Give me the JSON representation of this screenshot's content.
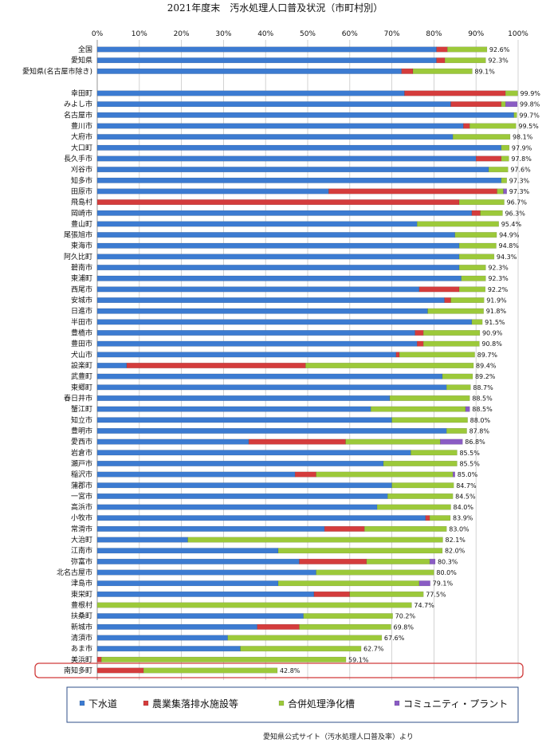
{
  "colors": {
    "sewer": "#3c7bd1",
    "agri": "#d43c3c",
    "johkasou": "#9cc93a",
    "community": "#8a5cc4",
    "highlight_box": "#d03a3a"
  },
  "chart_data": {
    "type": "bar",
    "orientation": "horizontal",
    "stacked": true,
    "title": "2021年度末　汚水処理人口普及状況（市町村別）",
    "source": "愛知県公式サイト（汚水処理人口普及率）より",
    "xlim": [
      0,
      100
    ],
    "x_ticks": [
      "0%",
      "10%",
      "20%",
      "30%",
      "40%",
      "50%",
      "60%",
      "70%",
      "80%",
      "90%",
      "100%"
    ],
    "grid": true,
    "legend_position": "bottom",
    "highlighted_category": "南知多町",
    "series": [
      {
        "key": "sewer",
        "name": "下水道"
      },
      {
        "key": "agri",
        "name": "農業集落排水施設等"
      },
      {
        "key": "johkasou",
        "name": "合併処理浄化槽"
      },
      {
        "key": "community",
        "name": "コミュニティ・プラント"
      }
    ],
    "categories": [
      {
        "name": "全国",
        "sewer": 80.6,
        "agri": 2.6,
        "johkasou": 9.4,
        "community": 0,
        "total": "92.6%"
      },
      {
        "name": "愛知県",
        "sewer": 80.6,
        "agri": 2.0,
        "johkasou": 9.7,
        "community": 0,
        "total": "92.3%"
      },
      {
        "name": "愛知県(名古屋市除き)",
        "sewer": 72.3,
        "agri": 2.7,
        "johkasou": 14.1,
        "community": 0,
        "total": "89.1%"
      },
      {
        "name": "幸田町",
        "sewer": 73.0,
        "agri": 24.0,
        "johkasou": 2.9,
        "community": 0,
        "total": "99.9%"
      },
      {
        "name": "みよし市",
        "sewer": 84.0,
        "agri": 12.0,
        "johkasou": 1.0,
        "community": 2.8,
        "total": "99.8%"
      },
      {
        "name": "名古屋市",
        "sewer": 99.0,
        "agri": 0,
        "johkasou": 0.7,
        "community": 0,
        "total": "99.7%"
      },
      {
        "name": "豊川市",
        "sewer": 87.0,
        "agri": 1.5,
        "johkasou": 11.0,
        "community": 0,
        "total": "99.5%"
      },
      {
        "name": "大府市",
        "sewer": 84.5,
        "agri": 0,
        "johkasou": 13.6,
        "community": 0,
        "total": "98.1%"
      },
      {
        "name": "大口町",
        "sewer": 96.0,
        "agri": 0,
        "johkasou": 1.9,
        "community": 0,
        "total": "97.9%"
      },
      {
        "name": "長久手市",
        "sewer": 90.0,
        "agri": 6.0,
        "johkasou": 1.8,
        "community": 0,
        "total": "97.8%"
      },
      {
        "name": "刈谷市",
        "sewer": 93.0,
        "agri": 0,
        "johkasou": 4.6,
        "community": 0,
        "total": "97.6%"
      },
      {
        "name": "知多市",
        "sewer": 96.0,
        "agri": 0,
        "johkasou": 1.3,
        "community": 0,
        "total": "97.3%"
      },
      {
        "name": "田原市",
        "sewer": 55.0,
        "agri": 40.0,
        "johkasou": 1.5,
        "community": 0.8,
        "total": "97.3%"
      },
      {
        "name": "飛島村",
        "sewer": 0,
        "agri": 86.0,
        "johkasou": 10.7,
        "community": 0,
        "total": "96.7%"
      },
      {
        "name": "岡崎市",
        "sewer": 89.0,
        "agri": 2.0,
        "johkasou": 5.3,
        "community": 0,
        "total": "96.3%"
      },
      {
        "name": "豊山町",
        "sewer": 76.0,
        "agri": 0,
        "johkasou": 19.4,
        "community": 0,
        "total": "95.4%"
      },
      {
        "name": "尾張旭市",
        "sewer": 85.0,
        "agri": 0,
        "johkasou": 9.9,
        "community": 0,
        "total": "94.9%"
      },
      {
        "name": "東海市",
        "sewer": 86.0,
        "agri": 0,
        "johkasou": 8.8,
        "community": 0,
        "total": "94.8%"
      },
      {
        "name": "阿久比町",
        "sewer": 86.0,
        "agri": 0,
        "johkasou": 8.3,
        "community": 0,
        "total": "94.3%"
      },
      {
        "name": "碧南市",
        "sewer": 86.0,
        "agri": 0,
        "johkasou": 6.3,
        "community": 0,
        "total": "92.3%"
      },
      {
        "name": "東浦町",
        "sewer": 86.5,
        "agri": 0,
        "johkasou": 5.8,
        "community": 0,
        "total": "92.3%"
      },
      {
        "name": "西尾市",
        "sewer": 76.5,
        "agri": 9.5,
        "johkasou": 6.2,
        "community": 0,
        "total": "92.2%"
      },
      {
        "name": "安城市",
        "sewer": 82.5,
        "agri": 1.5,
        "johkasou": 7.9,
        "community": 0,
        "total": "91.9%"
      },
      {
        "name": "日進市",
        "sewer": 78.5,
        "agri": 0,
        "johkasou": 13.3,
        "community": 0,
        "total": "91.8%"
      },
      {
        "name": "半田市",
        "sewer": 89.0,
        "agri": 0,
        "johkasou": 2.5,
        "community": 0,
        "total": "91.5%"
      },
      {
        "name": "豊橋市",
        "sewer": 75.5,
        "agri": 2.0,
        "johkasou": 13.4,
        "community": 0,
        "total": "90.9%"
      },
      {
        "name": "豊田市",
        "sewer": 76.0,
        "agri": 1.5,
        "johkasou": 13.3,
        "community": 0,
        "total": "90.8%"
      },
      {
        "name": "犬山市",
        "sewer": 71.0,
        "agri": 0.8,
        "johkasou": 17.9,
        "community": 0,
        "total": "89.7%"
      },
      {
        "name": "設楽町",
        "sewer": 7.0,
        "agri": 42.5,
        "johkasou": 39.9,
        "community": 0,
        "total": "89.4%"
      },
      {
        "name": "武豊町",
        "sewer": 82.0,
        "agri": 0,
        "johkasou": 7.2,
        "community": 0,
        "total": "89.2%"
      },
      {
        "name": "東郷町",
        "sewer": 83.0,
        "agri": 0,
        "johkasou": 5.7,
        "community": 0,
        "total": "88.7%"
      },
      {
        "name": "春日井市",
        "sewer": 69.5,
        "agri": 0,
        "johkasou": 19.0,
        "community": 0,
        "total": "88.5%"
      },
      {
        "name": "蟹江町",
        "sewer": 65.0,
        "agri": 0,
        "johkasou": 22.5,
        "community": 1.0,
        "total": "88.5%"
      },
      {
        "name": "知立市",
        "sewer": 70.0,
        "agri": 0,
        "johkasou": 18.0,
        "community": 0,
        "total": "88.0%"
      },
      {
        "name": "豊明市",
        "sewer": 83.0,
        "agri": 0,
        "johkasou": 4.8,
        "community": 0,
        "total": "87.8%"
      },
      {
        "name": "愛西市",
        "sewer": 36.0,
        "agri": 23.0,
        "johkasou": 22.5,
        "community": 5.3,
        "total": "86.8%"
      },
      {
        "name": "岩倉市",
        "sewer": 74.5,
        "agri": 0,
        "johkasou": 11.0,
        "community": 0,
        "total": "85.5%"
      },
      {
        "name": "瀬戸市",
        "sewer": 68.0,
        "agri": 0,
        "johkasou": 17.5,
        "community": 0,
        "total": "85.5%"
      },
      {
        "name": "稲沢市",
        "sewer": 47.0,
        "agri": 5.0,
        "johkasou": 32.5,
        "community": 0.5,
        "total": "85.0%"
      },
      {
        "name": "蒲郡市",
        "sewer": 70.0,
        "agri": 0,
        "johkasou": 14.7,
        "community": 0,
        "total": "84.7%"
      },
      {
        "name": "一宮市",
        "sewer": 69.0,
        "agri": 0,
        "johkasou": 15.5,
        "community": 0,
        "total": "84.5%"
      },
      {
        "name": "高浜市",
        "sewer": 66.5,
        "agri": 0,
        "johkasou": 17.5,
        "community": 0,
        "total": "84.0%"
      },
      {
        "name": "小牧市",
        "sewer": 78.0,
        "agri": 1.0,
        "johkasou": 4.9,
        "community": 0,
        "total": "83.9%"
      },
      {
        "name": "常滑市",
        "sewer": 54.0,
        "agri": 9.5,
        "johkasou": 19.5,
        "community": 0,
        "total": "83.0%"
      },
      {
        "name": "大治町",
        "sewer": 21.5,
        "agri": 0,
        "johkasou": 60.6,
        "community": 0,
        "total": "82.1%"
      },
      {
        "name": "江南市",
        "sewer": 43.0,
        "agri": 0,
        "johkasou": 39.0,
        "community": 0,
        "total": "82.0%"
      },
      {
        "name": "弥富市",
        "sewer": 48.0,
        "agri": 16.0,
        "johkasou": 15.0,
        "community": 1.3,
        "total": "80.3%"
      },
      {
        "name": "北名古屋市",
        "sewer": 52.0,
        "agri": 0,
        "johkasou": 28.0,
        "community": 0,
        "total": "80.0%"
      },
      {
        "name": "津島市",
        "sewer": 43.0,
        "agri": 0,
        "johkasou": 33.5,
        "community": 2.6,
        "total": "79.1%"
      },
      {
        "name": "東栄町",
        "sewer": 51.5,
        "agri": 8.5,
        "johkasou": 17.5,
        "community": 0,
        "total": "77.5%"
      },
      {
        "name": "豊根村",
        "sewer": 0,
        "agri": 0,
        "johkasou": 74.7,
        "community": 0,
        "total": "74.7%"
      },
      {
        "name": "扶桑町",
        "sewer": 49.0,
        "agri": 0,
        "johkasou": 21.2,
        "community": 0,
        "total": "70.2%"
      },
      {
        "name": "新城市",
        "sewer": 38.0,
        "agri": 10.0,
        "johkasou": 21.8,
        "community": 0,
        "total": "69.8%"
      },
      {
        "name": "清須市",
        "sewer": 31.0,
        "agri": 0,
        "johkasou": 36.6,
        "community": 0,
        "total": "67.6%"
      },
      {
        "name": "あま市",
        "sewer": 34.0,
        "agri": 0,
        "johkasou": 28.7,
        "community": 0,
        "total": "62.7%"
      },
      {
        "name": "美浜町",
        "sewer": 0,
        "agri": 1.0,
        "johkasou": 58.1,
        "community": 0,
        "total": "59.1%"
      },
      {
        "name": "南知多町",
        "sewer": 0,
        "agri": 11.0,
        "johkasou": 31.8,
        "community": 0,
        "total": "42.8%"
      }
    ]
  }
}
